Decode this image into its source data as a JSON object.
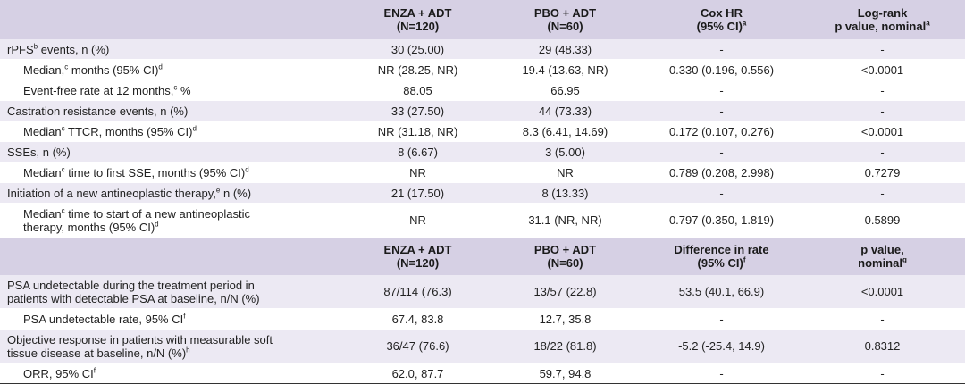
{
  "sections": [
    {
      "header": [
        [],
        [
          [
            {
              "text": "ENZA + ADT"
            }
          ],
          [
            {
              "text": "(N=120)"
            }
          ]
        ],
        [
          [
            {
              "text": "PBO + ADT"
            }
          ],
          [
            {
              "text": "(N=60)"
            }
          ]
        ],
        [
          [
            {
              "text": "Cox HR"
            }
          ],
          [
            {
              "text": "(95% CI)"
            },
            {
              "sup": "a"
            }
          ]
        ],
        [
          [
            {
              "text": "Log-rank"
            }
          ],
          [
            {
              "text": "p value, nominal"
            },
            {
              "sup": "a"
            }
          ]
        ]
      ],
      "rows": [
        {
          "indent": false,
          "label": [
            [
              {
                "text": "rPFS"
              },
              {
                "sup": "b"
              },
              {
                "text": " events, n (%)"
              }
            ]
          ],
          "cells": [
            "30 (25.00)",
            "29 (48.33)",
            "-",
            "-"
          ]
        },
        {
          "indent": true,
          "label": [
            [
              {
                "text": "Median,"
              },
              {
                "sup": "c"
              },
              {
                "text": " months (95% CI)"
              },
              {
                "sup": "d"
              }
            ]
          ],
          "cells": [
            "NR (28.25, NR)",
            "19.4 (13.63, NR)",
            "0.330 (0.196, 0.556)",
            "<0.0001"
          ]
        },
        {
          "indent": true,
          "label": [
            [
              {
                "text": "Event-free rate at 12 months,"
              },
              {
                "sup": "c"
              },
              {
                "text": " %"
              }
            ]
          ],
          "cells": [
            "88.05",
            "66.95",
            "-",
            "-"
          ]
        },
        {
          "indent": false,
          "label": [
            [
              {
                "text": "Castration resistance events, n (%)"
              }
            ]
          ],
          "cells": [
            "33 (27.50)",
            "44 (73.33)",
            "-",
            "-"
          ]
        },
        {
          "indent": true,
          "label": [
            [
              {
                "text": "Median"
              },
              {
                "sup": "c"
              },
              {
                "text": " TTCR, months (95% CI)"
              },
              {
                "sup": "d"
              }
            ]
          ],
          "cells": [
            "NR (31.18, NR)",
            "8.3 (6.41, 14.69)",
            "0.172 (0.107, 0.276)",
            "<0.0001"
          ]
        },
        {
          "indent": false,
          "label": [
            [
              {
                "text": "SSEs, n (%)"
              }
            ]
          ],
          "cells": [
            "8 (6.67)",
            "3 (5.00)",
            "-",
            "-"
          ]
        },
        {
          "indent": true,
          "label": [
            [
              {
                "text": "Median"
              },
              {
                "sup": "c"
              },
              {
                "text": " time to first SSE, months (95% CI)"
              },
              {
                "sup": "d"
              }
            ]
          ],
          "cells": [
            "NR",
            "NR",
            "0.789 (0.208, 2.998)",
            "0.7279"
          ]
        },
        {
          "indent": false,
          "label": [
            [
              {
                "text": "Initiation of a new antineoplastic therapy,"
              },
              {
                "sup": "e"
              },
              {
                "text": " n (%)"
              }
            ]
          ],
          "cells": [
            "21 (17.50)",
            "8 (13.33)",
            "-",
            "-"
          ]
        },
        {
          "indent": true,
          "label": [
            [
              {
                "text": "Median"
              },
              {
                "sup": "c"
              },
              {
                "text": " time to start of a new antineoplastic"
              }
            ],
            [
              {
                "text": "therapy, months (95% CI)"
              },
              {
                "sup": "d"
              }
            ]
          ],
          "cells": [
            "NR",
            "31.1 (NR, NR)",
            "0.797 (0.350, 1.819)",
            "0.5899"
          ]
        }
      ]
    },
    {
      "header": [
        [],
        [
          [
            {
              "text": "ENZA + ADT"
            }
          ],
          [
            {
              "text": "(N=120)"
            }
          ]
        ],
        [
          [
            {
              "text": "PBO + ADT"
            }
          ],
          [
            {
              "text": "(N=60)"
            }
          ]
        ],
        [
          [
            {
              "text": "Difference in rate"
            }
          ],
          [
            {
              "text": "(95% CI)"
            },
            {
              "sup": "f"
            }
          ]
        ],
        [
          [
            {
              "text": "p value,"
            }
          ],
          [
            {
              "text": "nominal"
            },
            {
              "sup": "g"
            }
          ]
        ]
      ],
      "rows": [
        {
          "indent": false,
          "label": [
            [
              {
                "text": "PSA undetectable during the treatment period in"
              }
            ],
            [
              {
                "text": "patients with detectable PSA at baseline, n/N (%)"
              }
            ]
          ],
          "cells": [
            "87/114 (76.3)",
            "13/57 (22.8)",
            "53.5 (40.1, 66.9)",
            "<0.0001"
          ]
        },
        {
          "indent": true,
          "label": [
            [
              {
                "text": "PSA undetectable rate, 95% CI"
              },
              {
                "sup": "f"
              }
            ]
          ],
          "cells": [
            "67.4, 83.8",
            "12.7, 35.8",
            "-",
            "-"
          ]
        },
        {
          "indent": false,
          "label": [
            [
              {
                "text": "Objective response in patients with measurable soft"
              }
            ],
            [
              {
                "text": "tissue disease at baseline, n/N (%)"
              },
              {
                "sup": "h"
              }
            ]
          ],
          "cells": [
            "36/47 (76.6)",
            "18/22 (81.8)",
            "-5.2 (-25.4, 14.9)",
            "0.8312"
          ]
        },
        {
          "indent": true,
          "label": [
            [
              {
                "text": "ORR, 95% CI"
              },
              {
                "sup": "f"
              }
            ]
          ],
          "cells": [
            "62.0, 87.7",
            "59.7, 94.8",
            "-",
            "-"
          ]
        }
      ]
    }
  ]
}
